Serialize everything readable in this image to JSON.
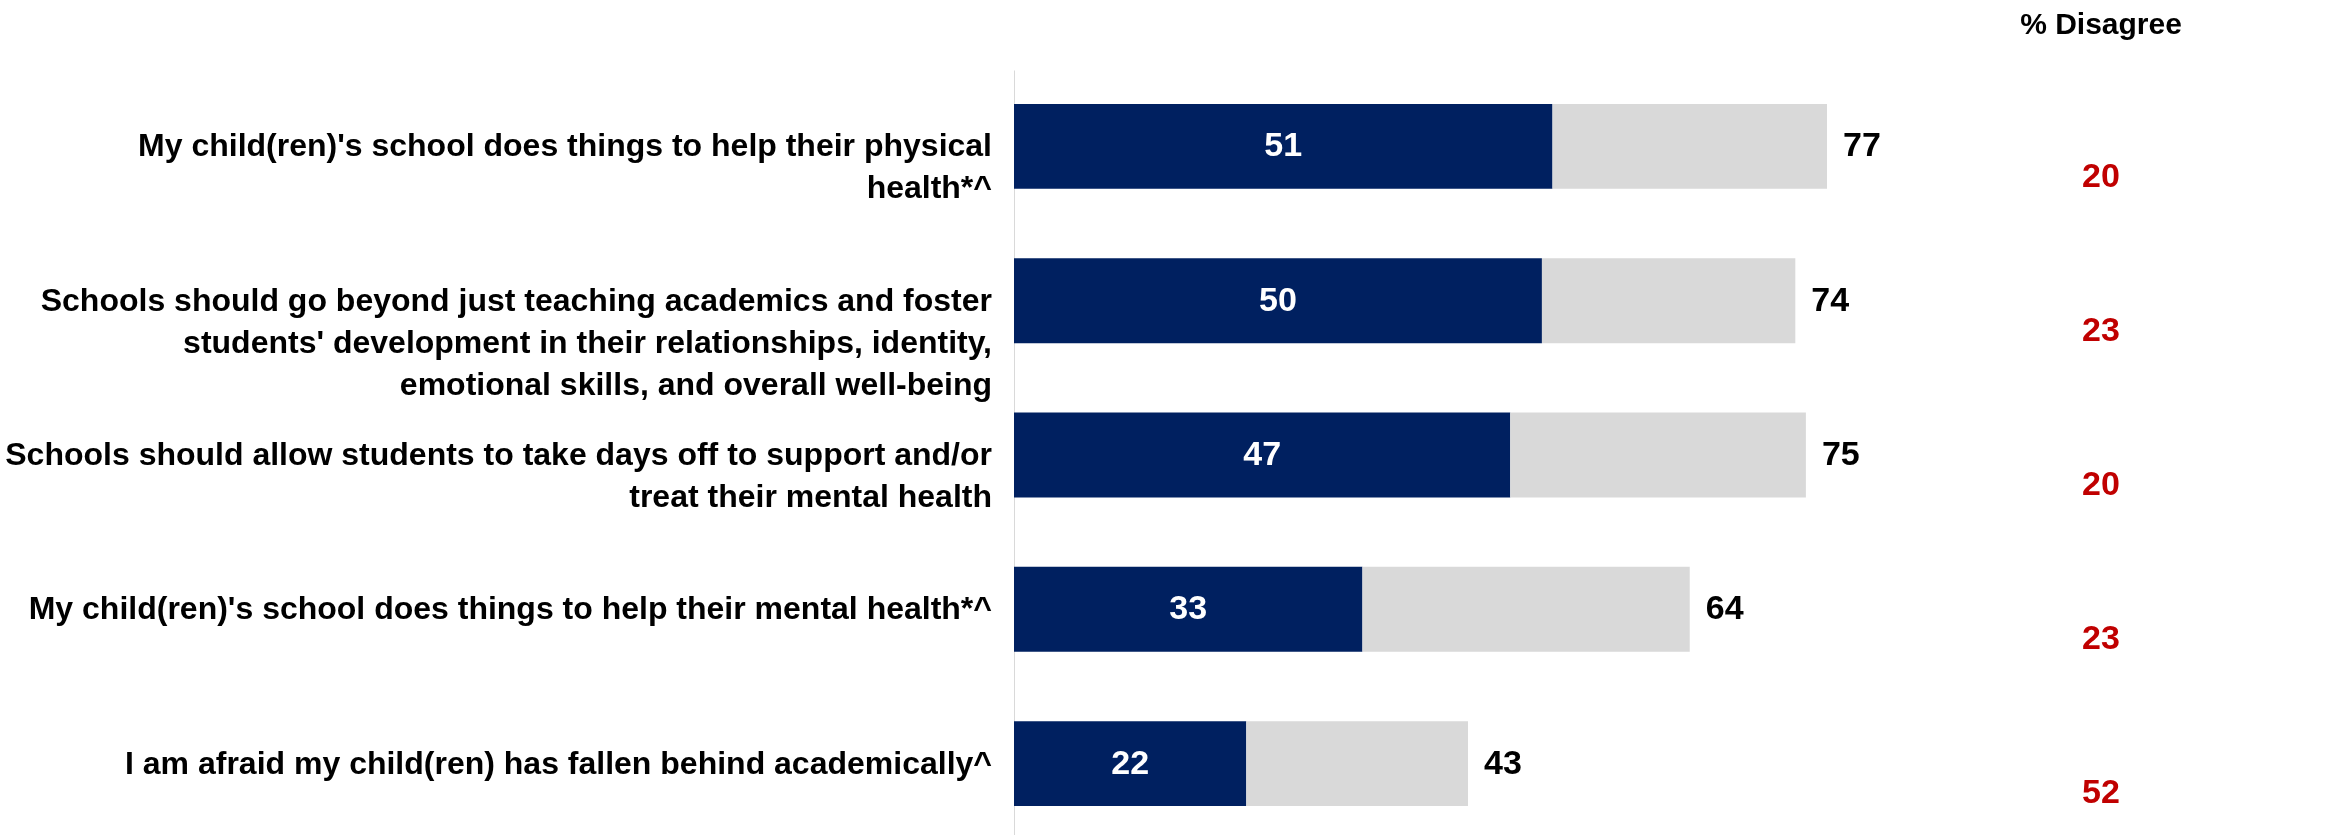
{
  "chart_data": {
    "type": "bar",
    "orientation": "horizontal",
    "stacked": true,
    "categories": [
      "My child(ren)'s school does things to help their physical health*^",
      "Schools should go beyond just teaching academics and foster students' development in their relationships, identity, emotional skills, and overall well-being",
      "Schools should allow students to take days off to support and/or treat their mental health",
      "My child(ren)'s school does things to help their mental health*^",
      "I am afraid my child(ren) has fallen behind academically^"
    ],
    "series": [
      {
        "color": "#002060",
        "values": [
          51,
          50,
          47,
          33,
          22
        ],
        "value_labels": [
          "51",
          "50",
          "47",
          "33",
          "22"
        ]
      },
      {
        "color": "#d9d9d9",
        "values": [
          26,
          24,
          28,
          31,
          21
        ]
      }
    ],
    "totals": [
      "77",
      "74",
      "75",
      "64",
      "43"
    ],
    "annotations": [
      "% Disagree",
      "20",
      "23",
      "20",
      "23",
      "52"
    ],
    "grid": false
  }
}
